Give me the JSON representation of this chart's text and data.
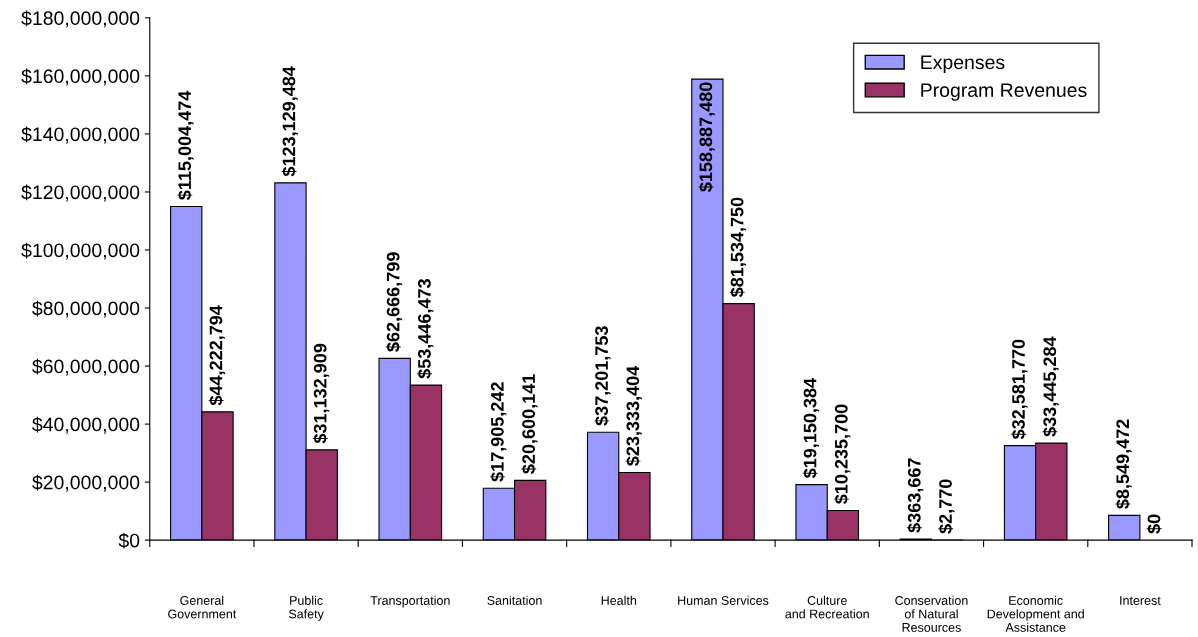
{
  "chart_data": {
    "type": "bar",
    "categories": [
      "General\nGovernment",
      "Public\nSafety",
      "Transportation",
      "Sanitation",
      "Health",
      "Human Services",
      "Culture\nand Recreation",
      "Conservation\nof Natural\nResources",
      "Economic\nDevelopment and\nAssistance",
      "Interest"
    ],
    "series": [
      {
        "name": "Expenses",
        "color": "#9999ff",
        "values": [
          115004474,
          123129484,
          62666799,
          17905242,
          37201753,
          158887480,
          19150384,
          363667,
          32581770,
          8549472
        ],
        "value_labels": [
          "$115,004,474",
          "$123,129,484",
          "$62,666,799",
          "$17,905,242",
          "$37,201,753",
          "$158,887,480",
          "$19,150,384",
          "$363,667",
          "$32,581,770",
          "$8,549,472"
        ]
      },
      {
        "name": "Program Revenues",
        "color": "#993366",
        "values": [
          44222794,
          31132909,
          53446473,
          20600141,
          23333404,
          81534750,
          10235700,
          2770,
          33445284,
          0
        ],
        "value_labels": [
          "$44,222,794",
          "$31,132,909",
          "$53,446,473",
          "$20,600,141",
          "$23,333,404",
          "$81,534,750",
          "$10,235,700",
          "$2,770",
          "$33,445,284",
          "$0"
        ]
      }
    ],
    "ylim": [
      0,
      180000000
    ],
    "yticks": [
      {
        "value": 0,
        "label": "$0"
      },
      {
        "value": 20000000,
        "label": "$20,000,000"
      },
      {
        "value": 40000000,
        "label": "$40,000,000"
      },
      {
        "value": 60000000,
        "label": "$60,000,000"
      },
      {
        "value": 80000000,
        "label": "$80,000,000"
      },
      {
        "value": 100000000,
        "label": "$100,000,000"
      },
      {
        "value": 120000000,
        "label": "$120,000,000"
      },
      {
        "value": 140000000,
        "label": "$140,000,000"
      },
      {
        "value": 160000000,
        "label": "$160,000,000"
      },
      {
        "value": 180000000,
        "label": "$180,000,000"
      }
    ],
    "legend": "top right",
    "grid": false
  }
}
